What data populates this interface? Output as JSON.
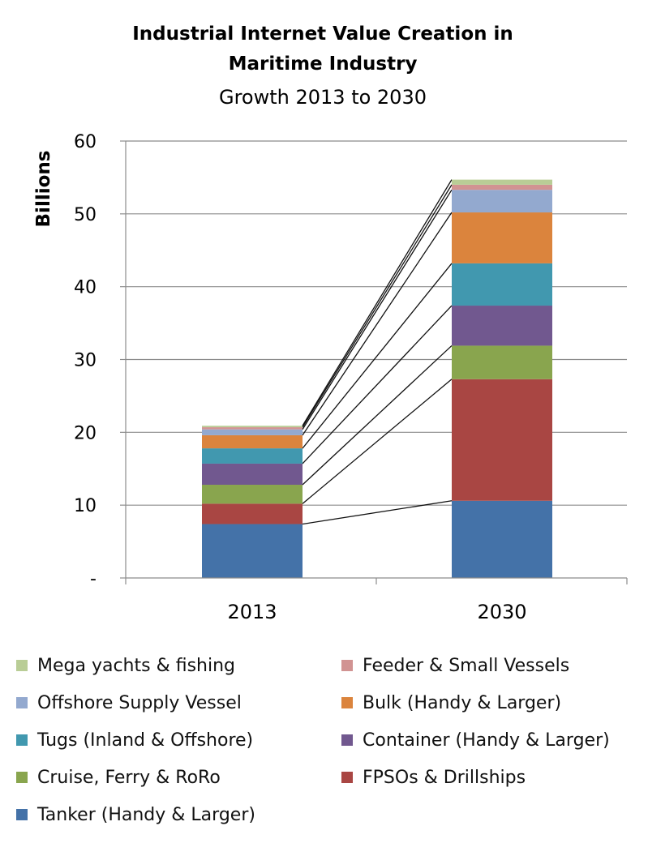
{
  "chart_data": {
    "type": "bar",
    "stacked": true,
    "title_lines": [
      "Industrial Internet Value Creation in",
      "Maritime Industry"
    ],
    "subtitle": "Growth 2013 to 2030",
    "xlabel": "",
    "ylabel": "Billions",
    "ylim": [
      0,
      60
    ],
    "yticks": [
      0,
      10,
      20,
      30,
      40,
      50,
      60
    ],
    "ytick_labels": [
      "-",
      "10",
      "20",
      "30",
      "40",
      "50",
      "60"
    ],
    "grid": true,
    "legend_position": "bottom",
    "categories": [
      "2013",
      "2030"
    ],
    "series": [
      {
        "name": "Tanker (Handy & Larger)",
        "color": "#4472a8",
        "values": [
          7.4,
          10.6
        ]
      },
      {
        "name": "FPSOs & Drillships",
        "color": "#a94643",
        "values": [
          2.8,
          16.7
        ]
      },
      {
        "name": "Cruise, Ferry & RoRo",
        "color": "#89a54e",
        "values": [
          2.6,
          4.6
        ]
      },
      {
        "name": "Container (Handy & Larger)",
        "color": "#71588f",
        "values": [
          2.9,
          5.5
        ]
      },
      {
        "name": "Tugs (Inland & Offshore)",
        "color": "#4198af",
        "values": [
          2.1,
          5.8
        ]
      },
      {
        "name": "Bulk (Handy & Larger)",
        "color": "#db843d",
        "values": [
          1.8,
          7.0
        ]
      },
      {
        "name": "Offshore Supply Vessel",
        "color": "#93a9cf",
        "values": [
          0.8,
          3.1
        ]
      },
      {
        "name": "Feeder & Small Vessels",
        "color": "#d19392",
        "values": [
          0.3,
          0.7
        ]
      },
      {
        "name": "Mega yachts & fishing",
        "color": "#b9cd96",
        "values": [
          0.2,
          0.7
        ]
      }
    ]
  },
  "legend_order": [
    "Mega yachts & fishing",
    "Feeder & Small Vessels",
    "Offshore Supply Vessel",
    "Bulk (Handy & Larger)",
    "Tugs (Inland & Offshore)",
    "Container (Handy & Larger)",
    "Cruise, Ferry & RoRo",
    "FPSOs & Drillships",
    "Tanker (Handy & Larger)"
  ]
}
